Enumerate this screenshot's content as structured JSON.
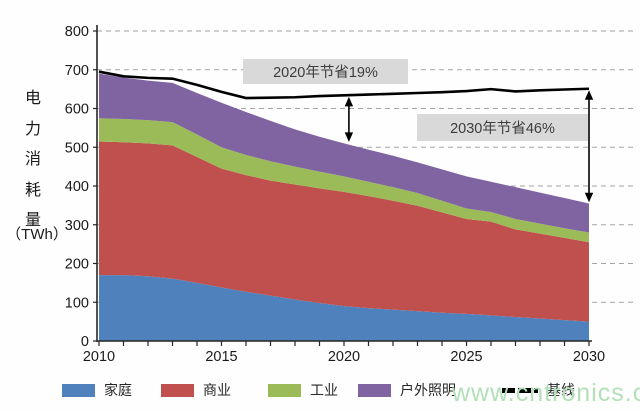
{
  "y_axis": {
    "title_chars": [
      "电",
      "力",
      "消",
      "耗",
      "量"
    ],
    "unit": "（TWh）"
  },
  "watermark": "www.cntronics.com",
  "chart_data": {
    "type": "area",
    "stacked": true,
    "title": "",
    "xlabel": "",
    "ylabel": "电力消耗量（TWh）",
    "ylim": [
      0,
      800
    ],
    "ytick_step": 100,
    "grid": "horizontal-dashed",
    "legend_position": "bottom",
    "x": [
      2010,
      2011,
      2012,
      2013,
      2014,
      2015,
      2016,
      2017,
      2018,
      2019,
      2020,
      2021,
      2022,
      2023,
      2024,
      2025,
      2026,
      2027,
      2028,
      2029,
      2030
    ],
    "xticks": [
      2010,
      2015,
      2020,
      2025,
      2030
    ],
    "series": [
      {
        "name": "家庭",
        "color": "#4f81bd",
        "values": [
          170,
          170,
          167,
          161,
          150,
          138,
          127,
          117,
          107,
          98,
          90,
          85,
          81,
          77,
          73,
          70,
          66,
          62,
          58,
          54,
          50
        ]
      },
      {
        "name": "商业",
        "color": "#c0504d",
        "values": [
          345,
          343,
          343,
          344,
          325,
          307,
          301,
          297,
          297,
          296,
          295,
          289,
          281,
          272,
          259,
          245,
          242,
          226,
          219,
          212,
          205
        ]
      },
      {
        "name": "工业",
        "color": "#9bbb59",
        "values": [
          60,
          60,
          60,
          60,
          58,
          55,
          52,
          50,
          46,
          43,
          40,
          37,
          35,
          33,
          30,
          27,
          25,
          27,
          26,
          25,
          25
        ]
      },
      {
        "name": "户外照明",
        "color": "#8064a2",
        "values": [
          115,
          107,
          102,
          101,
          107,
          115,
          111,
          104,
          96,
          90,
          85,
          83,
          81,
          79,
          81,
          83,
          78,
          82,
          80,
          78,
          75
        ]
      }
    ],
    "line_series": [
      {
        "name": "基线",
        "color": "#000000",
        "values": [
          695,
          683,
          679,
          677,
          661,
          643,
          627,
          628,
          629,
          632,
          634,
          636,
          638,
          640,
          642,
          645,
          650,
          644,
          647,
          649,
          651
        ]
      }
    ],
    "annotations": [
      {
        "text": "2020年节省19%",
        "arrow_year": 2020.2,
        "arrow_top_value": 630,
        "arrow_bottom_value": 514
      },
      {
        "text": "2030年节省46%",
        "arrow_year": 2030,
        "arrow_top_value": 647,
        "arrow_bottom_value": 358
      }
    ]
  }
}
